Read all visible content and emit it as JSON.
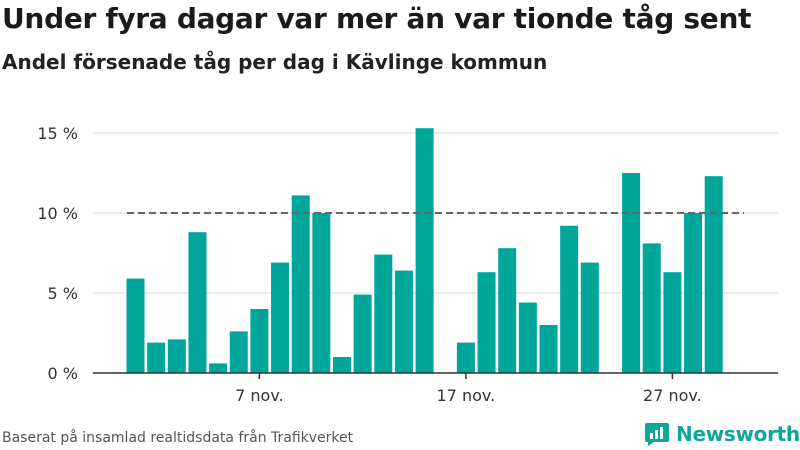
{
  "title": "Under fyra dagar var mer än var tionde tåg sent",
  "subtitle": "Andel försenade tåg per dag i Kävlinge kommun",
  "source": "Baserat på insamlad realtidsdata från Trafikverket",
  "brand": {
    "name": "Newsworthy",
    "color": "#0ea59a"
  },
  "chart_data": {
    "type": "bar",
    "x_start": "2019-11-01",
    "x": [
      "2019-11-01",
      "2019-11-02",
      "2019-11-03",
      "2019-11-04",
      "2019-11-05",
      "2019-11-06",
      "2019-11-07",
      "2019-11-08",
      "2019-11-09",
      "2019-11-10",
      "2019-11-11",
      "2019-11-12",
      "2019-11-13",
      "2019-11-14",
      "2019-11-15",
      "2019-11-16",
      "2019-11-17",
      "2019-11-18",
      "2019-11-19",
      "2019-11-20",
      "2019-11-21",
      "2019-11-22",
      "2019-11-23",
      "2019-11-24",
      "2019-11-25",
      "2019-11-26",
      "2019-11-27",
      "2019-11-28",
      "2019-11-29",
      "2019-11-30"
    ],
    "values": [
      5.9,
      1.9,
      2.1,
      8.8,
      0.6,
      2.6,
      4.0,
      6.9,
      11.1,
      10.0,
      1.0,
      4.9,
      7.4,
      6.4,
      15.3,
      null,
      1.9,
      6.3,
      7.8,
      4.4,
      3.0,
      9.2,
      6.9,
      null,
      12.5,
      8.1,
      6.3,
      10.0,
      12.3,
      null
    ],
    "color": "#00a69a",
    "ylim": [
      0,
      15.5
    ],
    "y_ticks": [
      0,
      5,
      10,
      15
    ],
    "y_tick_labels": [
      "0 %",
      "5 %",
      "10 %",
      "15 %"
    ],
    "x_ticks": [
      "2019-11-07",
      "2019-11-17",
      "2019-11-27"
    ],
    "x_tick_labels": [
      "7 nov.",
      "17 nov.",
      "27 nov."
    ],
    "reference_line": {
      "value": 10,
      "style": "dashed",
      "color": "#666666"
    },
    "grid": true,
    "xlabel": "",
    "ylabel": ""
  }
}
